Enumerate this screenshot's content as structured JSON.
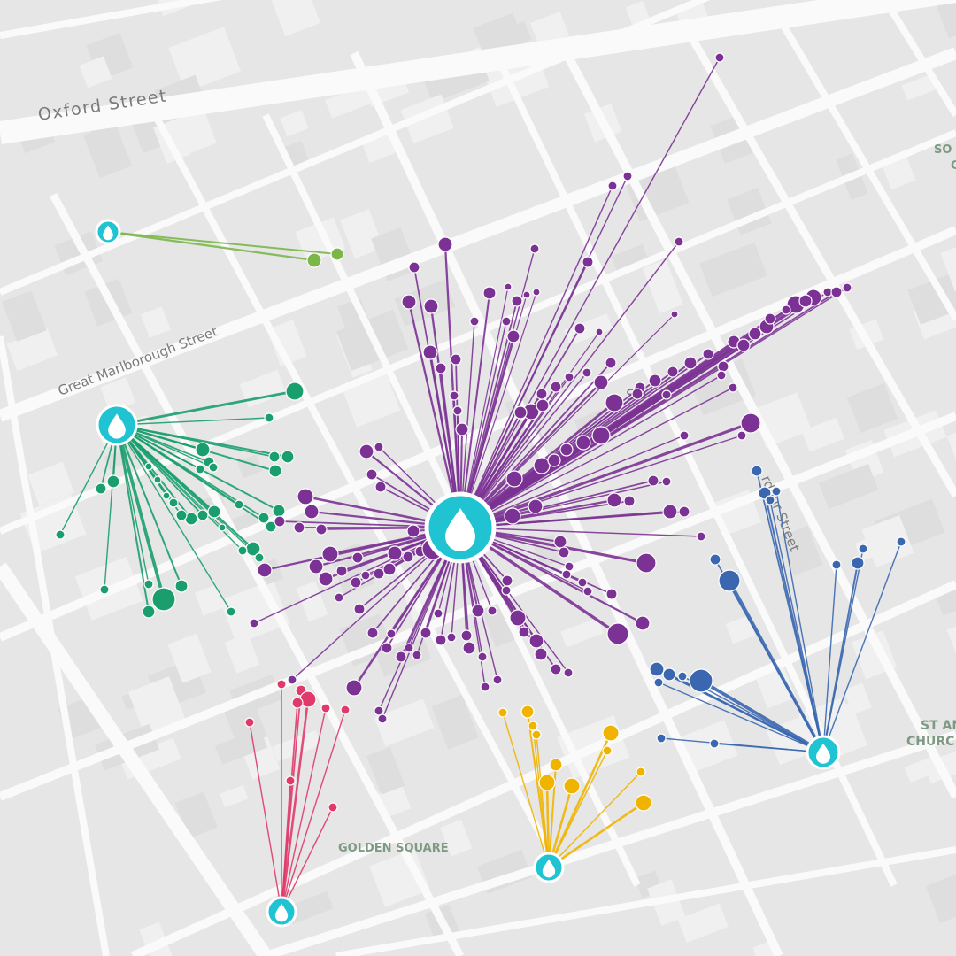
{
  "map": {
    "street_labels": {
      "oxford": "Oxford Street",
      "great_marlborough": "Great Marlborough Street",
      "wardour": "rdour Street",
      "soho": "SO"
    },
    "place_labels": {
      "golden_square": "GOLDEN SQUARE",
      "st_anne_line1": "ST AN",
      "st_anne_line2": "CHURC",
      "soho_square_line1": "SO",
      "soho_square_line2": "C"
    },
    "colors": {
      "background": "#e6e6e6",
      "road": "#fafafa",
      "block": "#dcdcdc",
      "pump": "#1fc3d2",
      "purple": "#7b3294",
      "green": "#1a9e6e",
      "light_green": "#7ab648",
      "red": "#e03a6a",
      "yellow": "#f0b400",
      "blue": "#3a67b0"
    },
    "pump_icon": "water-drop-icon",
    "pumps": [
      {
        "id": "pump-north-west",
        "color_key": "light_green"
      },
      {
        "id": "pump-west",
        "color_key": "green"
      },
      {
        "id": "pump-broad-street",
        "color_key": "purple"
      },
      {
        "id": "pump-south-west",
        "color_key": "red"
      },
      {
        "id": "pump-south",
        "color_key": "yellow"
      },
      {
        "id": "pump-south-east",
        "color_key": "blue"
      }
    ]
  }
}
